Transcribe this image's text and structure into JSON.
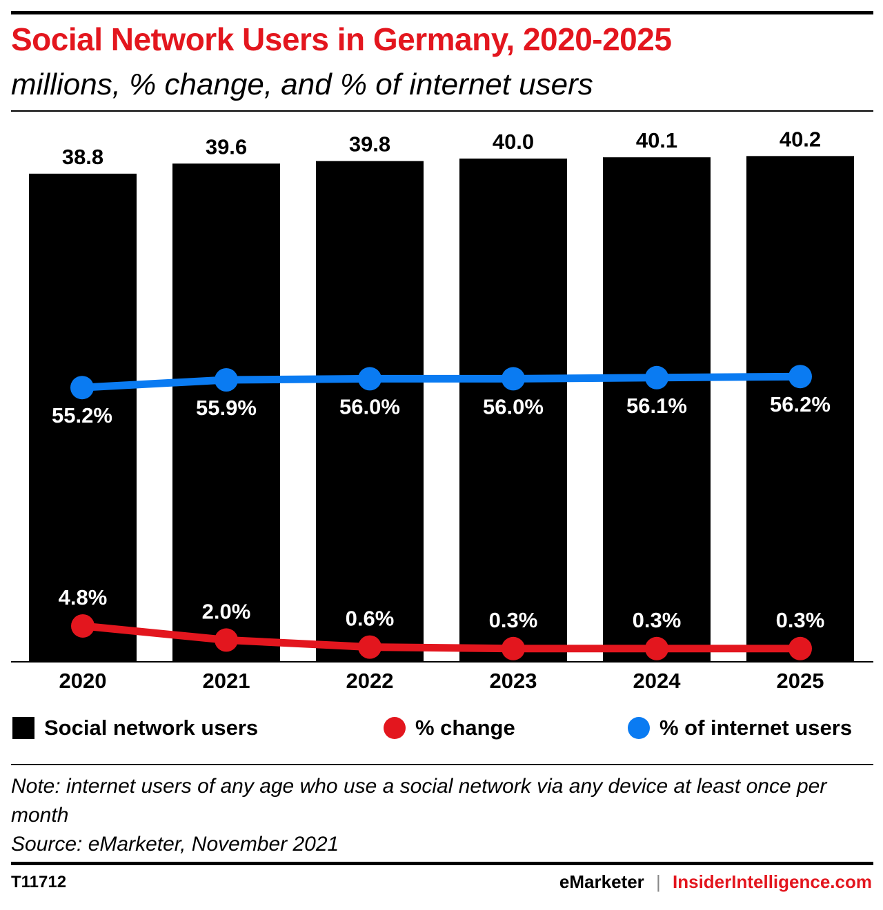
{
  "header": {
    "title": "Social Network Users in Germany, 2020-2025",
    "subtitle": "millions, % change, and % of internet users"
  },
  "chart_data": {
    "type": "bar",
    "categories": [
      "2020",
      "2021",
      "2022",
      "2023",
      "2024",
      "2025"
    ],
    "series": [
      {
        "name": "Social network users",
        "type": "bar",
        "values": [
          38.8,
          39.6,
          39.8,
          40.0,
          40.1,
          40.2
        ],
        "labels": [
          "38.8",
          "39.6",
          "39.8",
          "40.0",
          "40.1",
          "40.2"
        ],
        "color": "#000000"
      },
      {
        "name": "% change",
        "type": "line",
        "values": [
          4.8,
          2.0,
          0.6,
          0.3,
          0.3,
          0.3
        ],
        "labels": [
          "4.8%",
          "2.0%",
          "0.6%",
          "0.3%",
          "0.3%",
          "0.3%"
        ],
        "color": "#e3161e"
      },
      {
        "name": "% of internet users",
        "type": "line",
        "values": [
          55.2,
          55.9,
          56.0,
          56.0,
          56.1,
          56.2
        ],
        "labels": [
          "55.2%",
          "55.9%",
          "56.0%",
          "56.0%",
          "56.1%",
          "56.2%"
        ],
        "color": "#0a7bf2"
      }
    ],
    "grid": false,
    "legend_placement": "bottom"
  },
  "legend": {
    "bar_label": "Social network users",
    "change_label": "% change",
    "share_label": "% of internet users"
  },
  "notes": {
    "note": "Note: internet users of any age who use a social network via any device at least once per month",
    "source": "Source: eMarketer, November 2021"
  },
  "footer": {
    "id": "T11712",
    "brand": "eMarketer",
    "separator": "|",
    "site": "InsiderIntelligence.com"
  }
}
